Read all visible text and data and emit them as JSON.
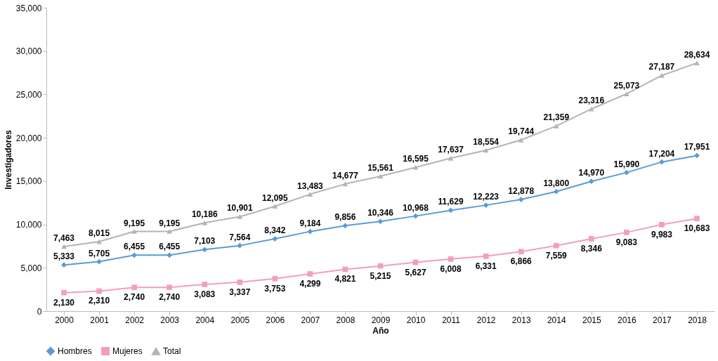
{
  "chart_data": {
    "type": "line",
    "xlabel": "Año",
    "ylabel": "Investigadores",
    "categories": [
      "2000",
      "2001",
      "2002",
      "2003",
      "2004",
      "2005",
      "2006",
      "2007",
      "2008",
      "2009",
      "2010",
      "2011",
      "2012",
      "2013",
      "2014",
      "2015",
      "2016",
      "2017",
      "2018"
    ],
    "series": [
      {
        "name": "Hombres",
        "color": "#5b9bd5",
        "marker": "diamond",
        "values": [
          5333,
          5705,
          6455,
          6455,
          7103,
          7564,
          8342,
          9184,
          9856,
          10346,
          10968,
          11629,
          12223,
          12878,
          13800,
          14970,
          15990,
          17204,
          17951
        ],
        "value_labels": [
          "5,333",
          "5,705",
          "6,455",
          "6,455",
          "7,103",
          "7,564",
          "8,342",
          "9,184",
          "9,856",
          "10,346",
          "10,968",
          "11,629",
          "12,223",
          "12,878",
          "13,800",
          "14,970",
          "15,990",
          "17,204",
          "17,951"
        ]
      },
      {
        "name": "Mujeres",
        "color": "#f4a0b4",
        "marker": "square",
        "values": [
          2130,
          2310,
          2740,
          2740,
          3083,
          3337,
          3753,
          4299,
          4821,
          5215,
          5627,
          6008,
          6331,
          6866,
          7559,
          8346,
          9083,
          9983,
          10683
        ],
        "value_labels": [
          "2,130",
          "2,310",
          "2,740",
          "2,740",
          "3,083",
          "3,337",
          "3,753",
          "4,299",
          "4,821",
          "5,215",
          "5,627",
          "6,008",
          "6,331",
          "6,866",
          "7,559",
          "8,346",
          "9,083",
          "9,983",
          "10,683"
        ]
      },
      {
        "name": "Total",
        "color": "#b4b4b4",
        "marker": "triangle",
        "values": [
          7463,
          8015,
          9195,
          9195,
          10186,
          10901,
          12095,
          13483,
          14677,
          15561,
          16595,
          17637,
          18554,
          19744,
          21359,
          23316,
          25073,
          27187,
          28634
        ],
        "value_labels": [
          "7,463",
          "8,015",
          "9,195",
          "9,195",
          "10,186",
          "10,901",
          "12,095",
          "13,483",
          "14,677",
          "15,561",
          "16,595",
          "17,637",
          "18,554",
          "19,744",
          "21,359",
          "23,316",
          "25,073",
          "27,187",
          "28,634"
        ]
      }
    ],
    "ylim": [
      0,
      35000
    ],
    "yticks": [
      0,
      {
        "value": 5000,
        "label": "5,000"
      },
      {
        "value": 10000,
        "label": "10,000"
      },
      {
        "value": 15000,
        "label": "15,000"
      },
      {
        "value": 20000,
        "label": "20,000"
      },
      {
        "value": 25000,
        "label": "25,000"
      },
      {
        "value": 30000,
        "label": "30,000"
      },
      {
        "value": 35000,
        "label": "35,000"
      }
    ],
    "legend": "bottom",
    "grid": false
  }
}
